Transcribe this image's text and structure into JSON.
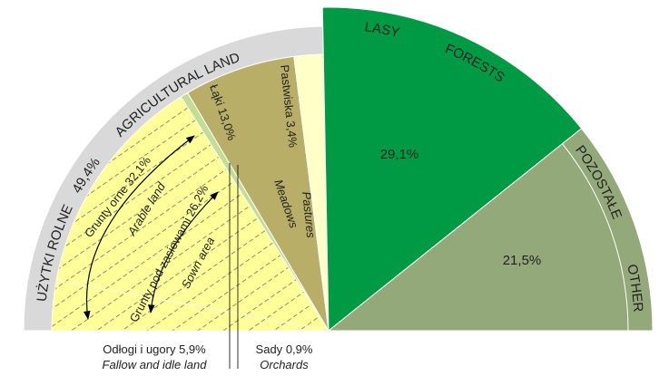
{
  "chart_data": {
    "type": "pie",
    "groups": [
      {
        "name": "UŻYTKI ROLNE",
        "name_en": "AGRICULTURAL LAND",
        "value": 49.4,
        "value_label": "49,4%",
        "color": "#d9d9d9"
      },
      {
        "name": "Grunty orne",
        "name_en": "Arable land",
        "value": 32.1,
        "value_label": "32,1%"
      }
    ],
    "slices": [
      {
        "name": "Odłogi i ugory",
        "name_en": "Fallow and idle land",
        "value": 5.9,
        "value_label": "5,9%",
        "color": "#ffff99",
        "hatch": true
      },
      {
        "name": "Grunty pod zasiewami",
        "name_en": "Sown area",
        "value": 26.2,
        "value_label": "26,2%",
        "color": "#ffff99",
        "hatch": true
      },
      {
        "name": "Sady",
        "name_en": "Orchards",
        "value": 0.9,
        "value_label": "0,9%",
        "color": "#c3dd95",
        "hatch": false
      },
      {
        "name": "Łąki",
        "name_en": "Meadows",
        "value": 13.0,
        "value_label": "13,0%",
        "color": "#b8ae67",
        "hatch": false
      },
      {
        "name": "Pastwiska",
        "name_en": "Pastures",
        "value": 3.4,
        "value_label": "3,4%",
        "color": "#ffffc8",
        "hatch": false
      },
      {
        "name": "LASY",
        "name_en": "FORESTS",
        "value": 29.1,
        "value_label": "29,1%",
        "color": "#009a44",
        "hatch": false
      },
      {
        "name": "POZOSTAŁE",
        "name_en": "OTHER",
        "value": 21.5,
        "value_label": "21,5%",
        "color": "#94a97a",
        "hatch": false
      }
    ]
  }
}
